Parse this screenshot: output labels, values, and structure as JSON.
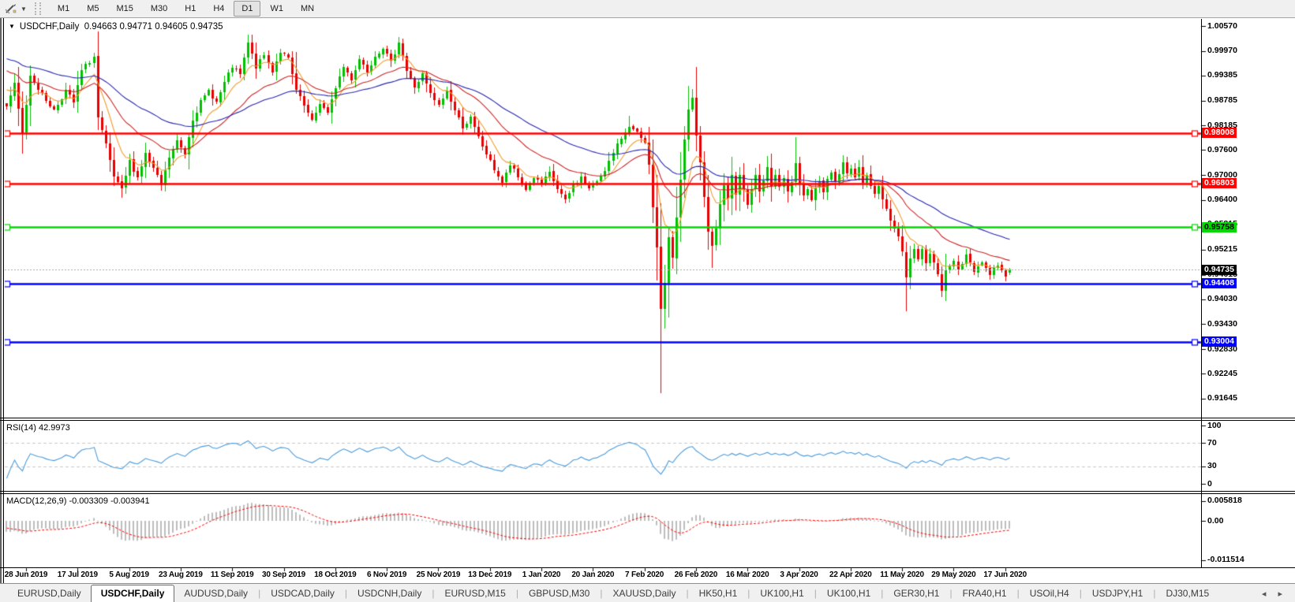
{
  "toolbar": {
    "timeframes": [
      "M1",
      "M5",
      "M15",
      "M30",
      "H1",
      "H4",
      "D1",
      "W1",
      "MN"
    ],
    "active_timeframe": "D1",
    "cursor_icon": "crosshair-cursor"
  },
  "chart": {
    "title_symbol": "USDCHF,Daily",
    "ohlc_text": "0.94663 0.94771 0.94605 0.94735",
    "dropdown_marker": "▼"
  },
  "rsi_panel": {
    "label": "RSI(14) 42.9973"
  },
  "macd_panel": {
    "label": "MACD(12,26,9) -0.003309 -0.003941"
  },
  "tabs": {
    "items": [
      "EURUSD,Daily",
      "USDCHF,Daily",
      "AUDUSD,Daily",
      "USDCAD,Daily",
      "USDCNH,Daily",
      "EURUSD,M15",
      "GBPUSD,M30",
      "XAUUSD,Daily",
      "HK50,H1",
      "UK100,H1",
      "UK100,H1",
      "GER30,H1",
      "FRA40,H1",
      "USOil,H4",
      "USDJPY,H1",
      "DJ30,M15"
    ],
    "active_index": 1,
    "scroll_left": "◂",
    "scroll_right": "▸"
  },
  "chart_data": {
    "type": "candlestick",
    "symbol": "USDCHF",
    "timeframe": "Daily",
    "last_ohlc": [
      0.94663,
      0.94771,
      0.94605,
      0.94735
    ],
    "ylim": [
      0.91172,
      1.0074
    ],
    "y_ticks": [
      "1.00570",
      "0.99970",
      "0.99385",
      "0.98785",
      "0.98185",
      "0.97600",
      "0.97000",
      "0.96400",
      "0.95815",
      "0.95215",
      "0.94615",
      "0.94030",
      "0.93430",
      "0.92830",
      "0.92245",
      "0.91645"
    ],
    "x_dates": [
      "28 Jun 2019",
      "17 Jul 2019",
      "5 Aug 2019",
      "23 Aug 2019",
      "11 Sep 2019",
      "30 Sep 2019",
      "18 Oct 2019",
      "6 Nov 2019",
      "25 Nov 2019",
      "13 Dec 2019",
      "1 Jan 2020",
      "20 Jan 2020",
      "7 Feb 2020",
      "26 Feb 2020",
      "16 Mar 2020",
      "3 Apr 2020",
      "22 Apr 2020",
      "11 May 2020",
      "29 May 2020",
      "17 Jun 2020"
    ],
    "candle_up_color": "#00c000",
    "candle_down_color": "#e80000",
    "hlines": [
      {
        "price": 0.98008,
        "label": "0.98008",
        "color": "#ff0000",
        "text_color": "#ffffff"
      },
      {
        "price": 0.96803,
        "label": "0.96803",
        "color": "#ff0000",
        "text_color": "#ffffff"
      },
      {
        "price": 0.95758,
        "label": "0.95758",
        "color": "#00d800",
        "text_color": "#000000"
      },
      {
        "price": 0.94408,
        "label": "0.94408",
        "color": "#0000ff",
        "text_color": "#ffffff"
      },
      {
        "price": 0.93004,
        "label": "0.93004",
        "color": "#0000ff",
        "text_color": "#ffffff"
      }
    ],
    "current_price": {
      "value": 0.94735,
      "label": "0.94735",
      "badge_bg": "#000000",
      "text_color": "#ffffff"
    },
    "ma_lines": [
      {
        "name": "fast",
        "period": 8,
        "color": "#f29b2c"
      },
      {
        "name": "medium",
        "period": 24,
        "color": "#cc2222"
      },
      {
        "name": "slow",
        "period": 52,
        "color": "#2626b0"
      }
    ],
    "rsi": {
      "period": 14,
      "current": 42.9973,
      "levels": [
        70,
        30
      ],
      "range": [
        0,
        100
      ],
      "ticks": [
        "100",
        "70",
        "30",
        "0"
      ],
      "tick_values": [
        100,
        70,
        30,
        0
      ],
      "color": "#4a9ada"
    },
    "macd": {
      "fast": 12,
      "slow": 26,
      "signal_period": 9,
      "macd_value": -0.003309,
      "signal_value": -0.003941,
      "range_max": 0.005818,
      "range_min": -0.011514,
      "ticks": [
        "0.005818",
        "0.00",
        "-0.011514"
      ],
      "tick_values": [
        0.005818,
        0.0,
        -0.011514
      ],
      "histogram_color": "#bdbdbd",
      "signal_color": "#ff0000"
    },
    "warmup_anchors": [
      [
        -45,
        1.0035
      ],
      [
        -30,
        1.0005
      ],
      [
        -20,
        0.999
      ],
      [
        -10,
        0.9992
      ],
      [
        -4,
        0.992
      ],
      [
        -1,
        0.9872
      ]
    ],
    "price_anchors": [
      [
        0,
        0.9865
      ],
      [
        2,
        0.9916
      ],
      [
        4,
        0.9799
      ],
      [
        6,
        0.994
      ],
      [
        9,
        0.9893
      ],
      [
        12,
        0.9855
      ],
      [
        15,
        0.9902
      ],
      [
        17,
        0.9874
      ],
      [
        19,
        0.995
      ],
      [
        22,
        0.9984
      ],
      [
        23,
        0.9836
      ],
      [
        25,
        0.977
      ],
      [
        27,
        0.9695
      ],
      [
        29,
        0.9663
      ],
      [
        31,
        0.9733
      ],
      [
        33,
        0.9695
      ],
      [
        35,
        0.9751
      ],
      [
        37,
        0.9714
      ],
      [
        39,
        0.9676
      ],
      [
        41,
        0.9742
      ],
      [
        43,
        0.978
      ],
      [
        45,
        0.9751
      ],
      [
        47,
        0.9836
      ],
      [
        49,
        0.9874
      ],
      [
        51,
        0.9902
      ],
      [
        53,
        0.9874
      ],
      [
        55,
        0.9921
      ],
      [
        57,
        0.9959
      ],
      [
        59,
        0.994
      ],
      [
        61,
        1.0016
      ],
      [
        63,
        0.9959
      ],
      [
        65,
        0.9987
      ],
      [
        67,
        0.995
      ],
      [
        69,
        0.9996
      ],
      [
        71,
        0.9978
      ],
      [
        73,
        0.9902
      ],
      [
        75,
        0.9865
      ],
      [
        77,
        0.9827
      ],
      [
        79,
        0.9874
      ],
      [
        81,
        0.9846
      ],
      [
        83,
        0.9911
      ],
      [
        85,
        0.9959
      ],
      [
        87,
        0.9931
      ],
      [
        89,
        0.9978
      ],
      [
        91,
        0.995
      ],
      [
        93,
        0.9987
      ],
      [
        95,
        1.0006
      ],
      [
        97,
        0.9968
      ],
      [
        99,
        1.0021
      ],
      [
        101,
        0.995
      ],
      [
        103,
        0.9911
      ],
      [
        105,
        0.994
      ],
      [
        107,
        0.9893
      ],
      [
        109,
        0.9865
      ],
      [
        111,
        0.9902
      ],
      [
        113,
        0.9855
      ],
      [
        115,
        0.9817
      ],
      [
        117,
        0.9836
      ],
      [
        119,
        0.9789
      ],
      [
        121,
        0.9751
      ],
      [
        123,
        0.9714
      ],
      [
        125,
        0.9682
      ],
      [
        127,
        0.9724
      ],
      [
        129,
        0.9695
      ],
      [
        131,
        0.9667
      ],
      [
        133,
        0.9695
      ],
      [
        135,
        0.9676
      ],
      [
        137,
        0.9705
      ],
      [
        139,
        0.9667
      ],
      [
        141,
        0.9637
      ],
      [
        143,
        0.9676
      ],
      [
        145,
        0.9695
      ],
      [
        147,
        0.9667
      ],
      [
        149,
        0.9686
      ],
      [
        151,
        0.9714
      ],
      [
        153,
        0.9751
      ],
      [
        155,
        0.9789
      ],
      [
        157,
        0.9821
      ],
      [
        159,
        0.9795
      ],
      [
        161,
        0.977
      ],
      [
        162,
        0.9714
      ],
      [
        163,
        0.9629
      ],
      [
        164,
        0.9516
      ],
      [
        165,
        0.9384
      ],
      [
        166,
        0.9441
      ],
      [
        167,
        0.9554
      ],
      [
        168,
        0.9497
      ],
      [
        169,
        0.9592
      ],
      [
        170,
        0.9686
      ],
      [
        171,
        0.978
      ],
      [
        172,
        0.9855
      ],
      [
        173,
        0.9883
      ],
      [
        174,
        0.9799
      ],
      [
        175,
        0.9724
      ],
      [
        176,
        0.9648
      ],
      [
        177,
        0.9573
      ],
      [
        178,
        0.9526
      ],
      [
        179,
        0.9573
      ],
      [
        180,
        0.9629
      ],
      [
        181,
        0.9676
      ],
      [
        182,
        0.9639
      ],
      [
        183,
        0.9695
      ],
      [
        184,
        0.9657
      ],
      [
        185,
        0.9705
      ],
      [
        186,
        0.9667
      ],
      [
        187,
        0.9629
      ],
      [
        188,
        0.9667
      ],
      [
        189,
        0.9695
      ],
      [
        190,
        0.9657
      ],
      [
        191,
        0.9686
      ],
      [
        192,
        0.9714
      ],
      [
        193,
        0.9676
      ],
      [
        194,
        0.9701
      ],
      [
        195,
        0.9667
      ],
      [
        196,
        0.969
      ],
      [
        197,
        0.9657
      ],
      [
        198,
        0.9686
      ],
      [
        199,
        0.9724
      ],
      [
        200,
        0.9676
      ],
      [
        201,
        0.9648
      ],
      [
        202,
        0.9671
      ],
      [
        203,
        0.9644
      ],
      [
        204,
        0.9667
      ],
      [
        205,
        0.969
      ],
      [
        206,
        0.9664
      ],
      [
        207,
        0.9686
      ],
      [
        208,
        0.9709
      ],
      [
        209,
        0.9682
      ],
      [
        210,
        0.9705
      ],
      [
        211,
        0.9728
      ],
      [
        212,
        0.9701
      ],
      [
        213,
        0.972
      ],
      [
        214,
        0.9695
      ],
      [
        215,
        0.9714
      ],
      [
        216,
        0.9686
      ],
      [
        217,
        0.9705
      ],
      [
        218,
        0.9676
      ],
      [
        219,
        0.9652
      ],
      [
        220,
        0.9671
      ],
      [
        221,
        0.9644
      ],
      [
        222,
        0.9619
      ],
      [
        223,
        0.9595
      ],
      [
        224,
        0.9573
      ],
      [
        225,
        0.9554
      ],
      [
        226,
        0.9516
      ],
      [
        227,
        0.9459
      ],
      [
        228,
        0.9497
      ],
      [
        229,
        0.9526
      ],
      [
        230,
        0.9497
      ],
      [
        231,
        0.952
      ],
      [
        232,
        0.9494
      ],
      [
        233,
        0.9516
      ],
      [
        234,
        0.9488
      ],
      [
        235,
        0.9459
      ],
      [
        236,
        0.9425
      ],
      [
        237,
        0.9468
      ],
      [
        238,
        0.9481
      ],
      [
        239,
        0.9497
      ],
      [
        240,
        0.9478
      ],
      [
        241,
        0.9492
      ],
      [
        242,
        0.9505
      ],
      [
        243,
        0.9488
      ],
      [
        244,
        0.947
      ],
      [
        245,
        0.9482
      ],
      [
        246,
        0.9496
      ],
      [
        247,
        0.9478
      ],
      [
        248,
        0.9462
      ],
      [
        249,
        0.9475
      ],
      [
        250,
        0.9488
      ],
      [
        251,
        0.947
      ],
      [
        252,
        0.946
      ],
      [
        253,
        0.94735
      ]
    ],
    "wick_overrides": [
      [
        4,
        null,
        0.9752
      ],
      [
        22,
        0.9992,
        null
      ],
      [
        29,
        null,
        0.9645
      ],
      [
        61,
        1.0036,
        null
      ],
      [
        73,
        0.9995,
        null
      ],
      [
        99,
        1.0031,
        null
      ],
      [
        157,
        0.9841,
        null
      ],
      [
        165,
        null,
        0.9177
      ],
      [
        173,
        0.9906,
        null
      ],
      [
        178,
        null,
        0.9478
      ],
      [
        199,
        0.9791,
        null
      ],
      [
        227,
        null,
        0.9373
      ],
      [
        236,
        null,
        0.9408
      ]
    ]
  }
}
